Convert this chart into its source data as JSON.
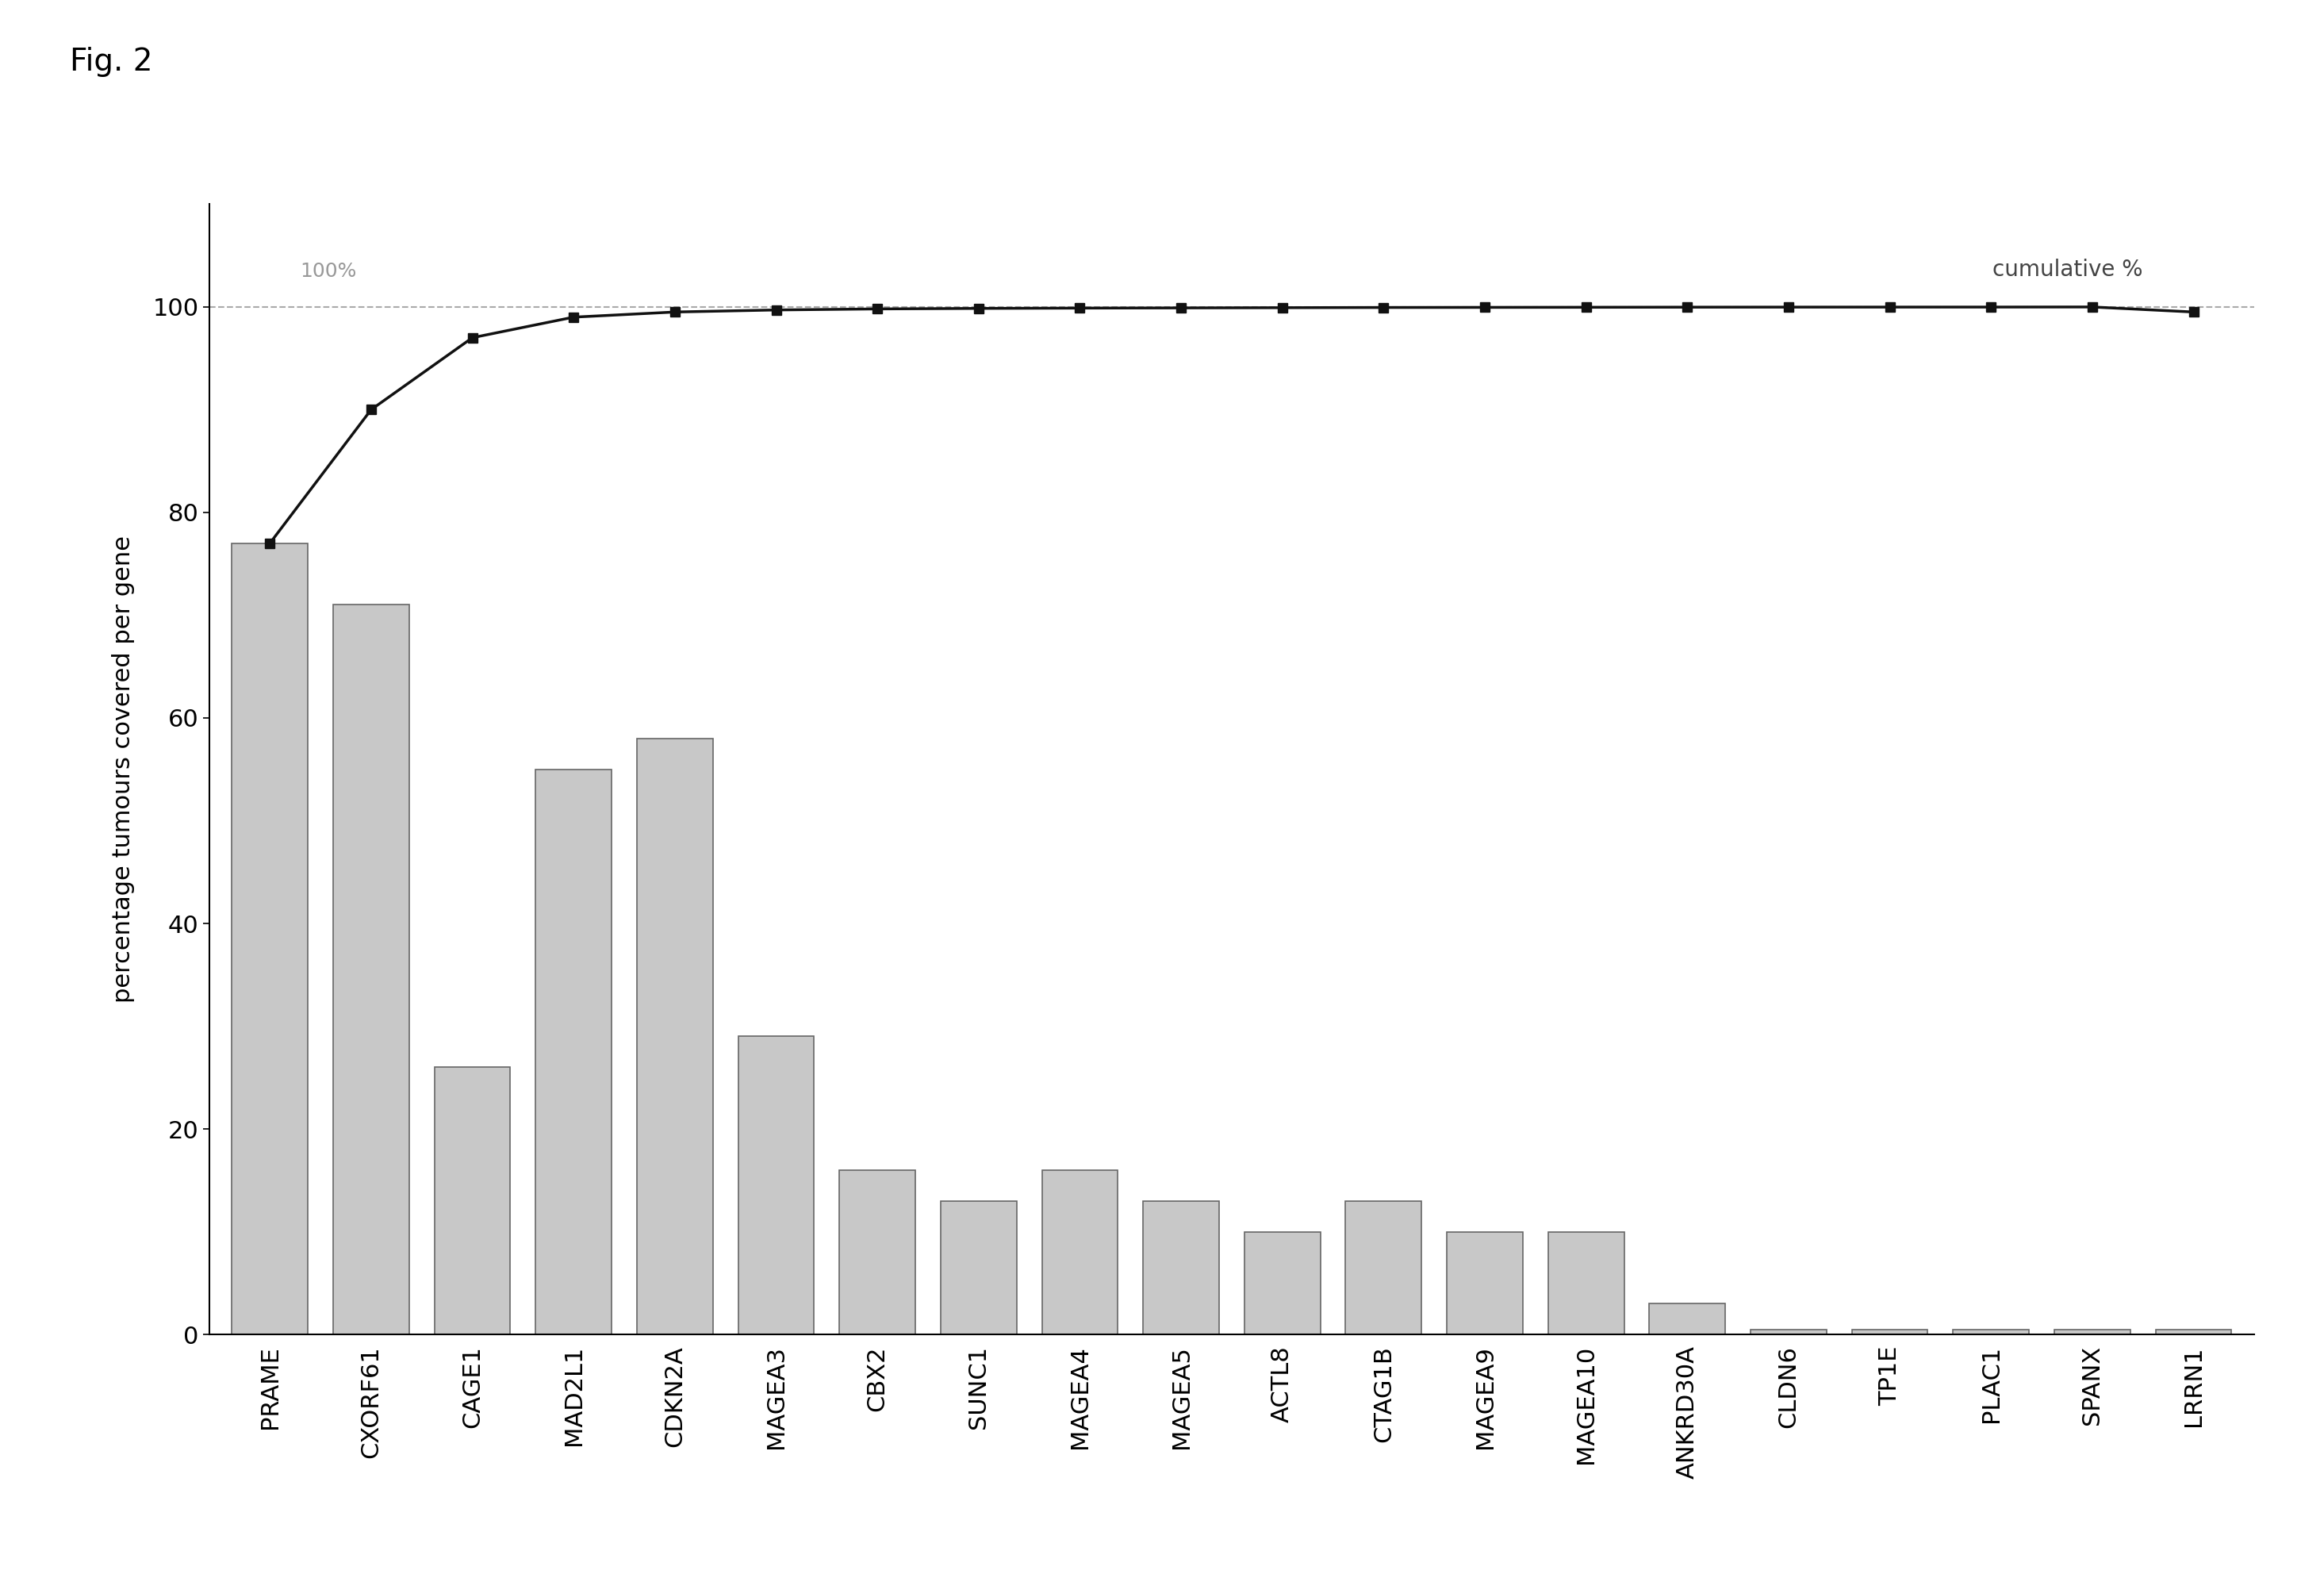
{
  "categories": [
    "PRAME",
    "CXORF61",
    "CAGE1",
    "MAD2L1",
    "CDKN2A",
    "MAGEA3",
    "CBX2",
    "SUNC1",
    "MAGEA4",
    "MAGEA5",
    "ACTL8",
    "CTAG1B",
    "MAGEA9",
    "MAGEA10",
    "ANKRD30A",
    "CLDN6",
    "TP1E",
    "PLAC1",
    "SPANX",
    "LRRN1"
  ],
  "bar_values": [
    77,
    71,
    26,
    55,
    58,
    29,
    16,
    13,
    16,
    13,
    10,
    13,
    10,
    10,
    3,
    0.5,
    0.5,
    0.5,
    0.5,
    0.5
  ],
  "cumulative_values": [
    77,
    90,
    97,
    99,
    99.5,
    99.7,
    99.8,
    99.85,
    99.88,
    99.9,
    99.92,
    99.94,
    99.95,
    99.96,
    99.97,
    99.975,
    99.978,
    99.98,
    99.99,
    99.5
  ],
  "bar_color": "#c8c8c8",
  "bar_edgecolor": "#666666",
  "line_color": "#111111",
  "marker_color": "#111111",
  "ylabel": "percentage tumours covered per gene",
  "ylim": [
    0,
    110
  ],
  "yticks": [
    0,
    20,
    40,
    60,
    80,
    100
  ],
  "reference_line_y": 100,
  "reference_line_label": "100%",
  "cumulative_label": "cumulative %",
  "fig_label": "Fig. 2",
  "background_color": "#ffffff",
  "bar_width": 0.75,
  "fontsize_ticks": 22,
  "fontsize_ylabel": 22,
  "fontsize_legend": 20,
  "fontsize_figlabel": 28,
  "fontsize_refline": 18
}
